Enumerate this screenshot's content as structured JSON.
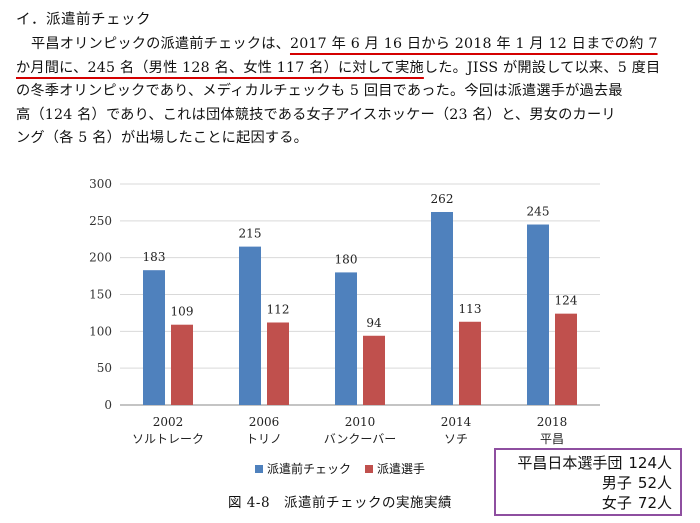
{
  "section": {
    "heading": "イ．派遣前チェック"
  },
  "paragraph": {
    "l1a": "平昌オリンピックの派遣前チェックは、",
    "l1b": "2017 年 6 月 16 日から 2018 年 1 月 12 日までの約 7",
    "l2a": "か月間に、245 名（男性 128 名、女性 117 名）に対して実施",
    "l2b": "した。JISS が開設して以来、5 度目",
    "l3": "の冬季オリンピックであり、メディカルチェックも 5 回目であった。今回は派遣選手が過去最",
    "l4": "高（124 名）であり、これは団体競技である女子アイスホッケー（23 名）と、男女のカーリ",
    "l5": "ング（各 5 名）が出場したことに起因する。"
  },
  "chart_data": {
    "type": "bar",
    "categories": [
      "2002\nソルトレーク",
      "2006\nトリノ",
      "2010\nバンクーバー",
      "2014\nソチ",
      "2018\n平昌"
    ],
    "category_year": [
      "2002",
      "2006",
      "2010",
      "2014",
      "2018"
    ],
    "category_city": [
      "ソルトレーク",
      "トリノ",
      "バンクーバー",
      "ソチ",
      "平昌"
    ],
    "series": [
      {
        "name": "派遣前チェック",
        "values": [
          183,
          215,
          180,
          262,
          245
        ],
        "color": "#4f81bd"
      },
      {
        "name": "派遣選手",
        "values": [
          109,
          112,
          94,
          113,
          124
        ],
        "color": "#c0504d"
      }
    ],
    "ylim": [
      0,
      300
    ],
    "yticks": [
      0,
      50,
      100,
      150,
      200,
      250,
      300
    ],
    "grid": true,
    "legend": "bottom",
    "title": ""
  },
  "caption": "図 4-8　派遣前チェックの実施実績",
  "summary": {
    "team_label": "平昌日本選手団",
    "team_value": "124人",
    "male_label": "男子",
    "male_value": "52人",
    "female_label": "女子",
    "female_value": "72人",
    "border_color": "#8e4fa0"
  }
}
